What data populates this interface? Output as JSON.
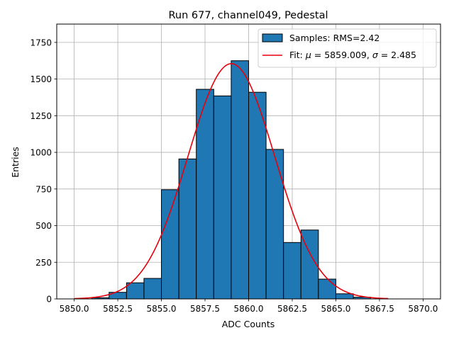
{
  "chart_data": {
    "type": "bar",
    "title": "Run 677, channel049, Pedestal",
    "xlabel": "ADC Counts",
    "ylabel": "Entries",
    "xlim": [
      5849.0,
      5871.0
    ],
    "ylim": [
      0,
      1875
    ],
    "grid": true,
    "xticks": [
      5850.0,
      5852.5,
      5855.0,
      5857.5,
      5860.0,
      5862.5,
      5865.0,
      5867.5,
      5870.0
    ],
    "xtick_labels": [
      "5850.0",
      "5852.5",
      "5855.0",
      "5857.5",
      "5860.0",
      "5862.5",
      "5865.0",
      "5867.5",
      "5870.0"
    ],
    "yticks": [
      0,
      250,
      500,
      750,
      1000,
      1250,
      1500,
      1750
    ],
    "ytick_labels": [
      "0",
      "250",
      "500",
      "750",
      "1000",
      "1250",
      "1500",
      "1750"
    ],
    "histogram": {
      "name": "Samples: RMS=2.42",
      "bin_width": 1,
      "bin_edges": [
        5851,
        5852,
        5853,
        5854,
        5855,
        5856,
        5857,
        5858,
        5859,
        5860,
        5861,
        5862,
        5863,
        5864,
        5865,
        5866,
        5867
      ],
      "counts": [
        8,
        45,
        110,
        140,
        745,
        955,
        1430,
        1385,
        1625,
        1410,
        1020,
        385,
        470,
        135,
        35,
        12
      ],
      "color": "#1f77b4",
      "edgecolor": "#000000"
    },
    "fit": {
      "name": "Fit: μ = 5859.009, σ = 2.485",
      "legend_prefix": "Fit: ",
      "mu_symbol": "μ",
      "mu_text": " = 5859.009, ",
      "sigma_symbol": "σ",
      "sigma_text": " = 2.485",
      "type": "gaussian",
      "mu": 5859.009,
      "sigma": 2.485,
      "amplitude": 1605,
      "x_range": [
        5850.0,
        5868.0
      ],
      "color": "#e8000b"
    },
    "legend_position": "top-right"
  }
}
